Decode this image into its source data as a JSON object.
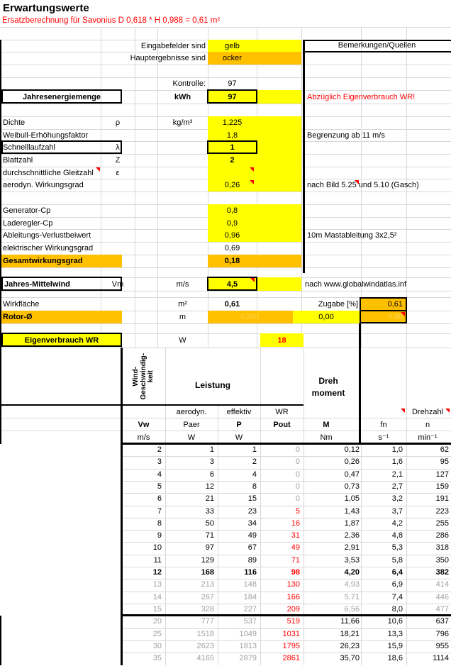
{
  "title": "Erwartungswerte",
  "subtitle": "Ersatzberechnung für Savonius D 0,618 * H 0,988 = 0,61 m²",
  "colors": {
    "input_yellow": "#ffff00",
    "result_ocker": "#ffc000",
    "alert_red": "#ff0000",
    "dim_text": "#a0a0a0",
    "faint_on_ocker": "#ffd24a"
  },
  "legend": {
    "input_label": "Eingabefelder sind",
    "input_value": "gelb",
    "result_label": "Hauptergebnisse sind",
    "result_value": "ocker"
  },
  "remarks_header": "Bemerkungen/Quellen",
  "kontrolle": {
    "label": "Kontrolle:",
    "value": "97"
  },
  "energy": {
    "label": "Jahresenergiemenge",
    "unit": "kWh",
    "value": "97",
    "remark": "Abzüglich Eigenverbrauch WR!"
  },
  "params": [
    {
      "label": "Dichte",
      "symbol": "ρ",
      "unit": "kg/m³",
      "value": "1,225",
      "remark": ""
    },
    {
      "label": "Weibull-Erhöhungsfaktor",
      "symbol": "",
      "unit": "",
      "value": "1,8",
      "remark": "Begrenzung ab 11 m/s"
    },
    {
      "label": "Schnelllaufzahl",
      "symbol": "λ",
      "unit": "",
      "value": "1",
      "remark": ""
    },
    {
      "label": "Blattzahl",
      "symbol": "Z",
      "unit": "",
      "value": "2",
      "remark": ""
    },
    {
      "label": "durchschnittliche Gleitzahl",
      "symbol": "ε",
      "unit": "",
      "value": "",
      "remark": ""
    },
    {
      "label": "aerodyn. Wirkungsgrad",
      "symbol": "",
      "unit": "",
      "value": "0,26",
      "remark": "nach Bild 5.25 und 5.10 (Gasch)"
    },
    {
      "label": "Generator-Cp",
      "symbol": "",
      "unit": "",
      "value": "0,8",
      "remark": ""
    },
    {
      "label": "Laderegler-Cp",
      "symbol": "",
      "unit": "",
      "value": "0,9",
      "remark": ""
    },
    {
      "label": "Ableitungs-Verlustbeiwert",
      "symbol": "",
      "unit": "",
      "value": "0,96",
      "remark": "10m Mastableitung 3x2,5²"
    },
    {
      "label": "elektrischer Wirkungsgrad",
      "symbol": "",
      "unit": "",
      "value": "0,69",
      "remark": ""
    },
    {
      "label": "Gesamtwirkungsgrad",
      "symbol": "",
      "unit": "",
      "value": "0,18",
      "remark": ""
    }
  ],
  "wind": {
    "label": "Jahres-Mittelwind",
    "symbol": "Vm",
    "unit": "m/s",
    "value": "4,5",
    "remark": "nach www.globalwindatlas.inf"
  },
  "area": {
    "label": "Wirkfläche",
    "unit": "m²",
    "value": "0,61",
    "zugabe_label": "Zugabe [%]",
    "zugabe_value": "0,61"
  },
  "rotor": {
    "label": "Rotor-Ø",
    "unit": "m",
    "value": "0,881",
    "zugabe_value": "0,00",
    "boxed_value": "0,88"
  },
  "consumption": {
    "label": "Eigenverbrauch WR",
    "unit": "W",
    "value": "18"
  },
  "table": {
    "rotated_header": "Wind-\nGeschwindig-\nkeit",
    "group_leistung": "Leistung",
    "group_moment_line1": "Dreh",
    "group_moment_line2": "moment",
    "sub_headers": {
      "paer": "aerodyn.",
      "p": "effektiv",
      "pout": "WR",
      "n": "Drehzahl"
    },
    "col_names": [
      "Vw",
      "Paer",
      "P",
      "Pout",
      "M",
      "fn",
      "n"
    ],
    "col_units": [
      "m/s",
      "W",
      "W",
      "",
      "Nm",
      "s⁻¹",
      "min⁻¹"
    ],
    "rows": [
      {
        "v": [
          "2",
          "1",
          "1",
          "0",
          "0,12",
          "1,0",
          "62"
        ],
        "style": "zero"
      },
      {
        "v": [
          "3",
          "3",
          "2",
          "0",
          "0,26",
          "1,6",
          "95"
        ],
        "style": "zero"
      },
      {
        "v": [
          "4",
          "6",
          "4",
          "0",
          "0,47",
          "2,1",
          "127"
        ],
        "style": "zero"
      },
      {
        "v": [
          "5",
          "12",
          "8",
          "0",
          "0,73",
          "2,7",
          "159"
        ],
        "style": "zero"
      },
      {
        "v": [
          "6",
          "21",
          "15",
          "0",
          "1,05",
          "3,2",
          "191"
        ],
        "style": "zero"
      },
      {
        "v": [
          "7",
          "33",
          "23",
          "5",
          "1,43",
          "3,7",
          "223"
        ],
        "style": "normal"
      },
      {
        "v": [
          "8",
          "50",
          "34",
          "16",
          "1,87",
          "4,2",
          "255"
        ],
        "style": "normal"
      },
      {
        "v": [
          "9",
          "71",
          "49",
          "31",
          "2,36",
          "4,8",
          "286"
        ],
        "style": "normal"
      },
      {
        "v": [
          "10",
          "97",
          "67",
          "49",
          "2,91",
          "5,3",
          "318"
        ],
        "style": "normal"
      },
      {
        "v": [
          "11",
          "129",
          "89",
          "71",
          "3,53",
          "5,8",
          "350"
        ],
        "style": "normal"
      },
      {
        "v": [
          "12",
          "168",
          "116",
          "98",
          "4,20",
          "6,4",
          "382"
        ],
        "style": "bold"
      },
      {
        "v": [
          "13",
          "213",
          "148",
          "130",
          "4,93",
          "6,9",
          "414"
        ],
        "style": "dim"
      },
      {
        "v": [
          "14",
          "267",
          "184",
          "166",
          "5,71",
          "7,4",
          "446"
        ],
        "style": "dim"
      },
      {
        "v": [
          "15",
          "328",
          "227",
          "209",
          "6,56",
          "8,0",
          "477"
        ],
        "style": "dim"
      },
      {
        "v": [
          "20",
          "777",
          "537",
          "519",
          "11,66",
          "10,6",
          "637"
        ],
        "style": "dim2"
      },
      {
        "v": [
          "25",
          "1518",
          "1049",
          "1031",
          "18,21",
          "13,3",
          "796"
        ],
        "style": "dim2"
      },
      {
        "v": [
          "30",
          "2623",
          "1813",
          "1795",
          "26,23",
          "15,9",
          "955"
        ],
        "style": "dim2"
      },
      {
        "v": [
          "35",
          "4165",
          "2879",
          "2861",
          "35,70",
          "18,6",
          "1114"
        ],
        "style": "dim2"
      }
    ]
  }
}
